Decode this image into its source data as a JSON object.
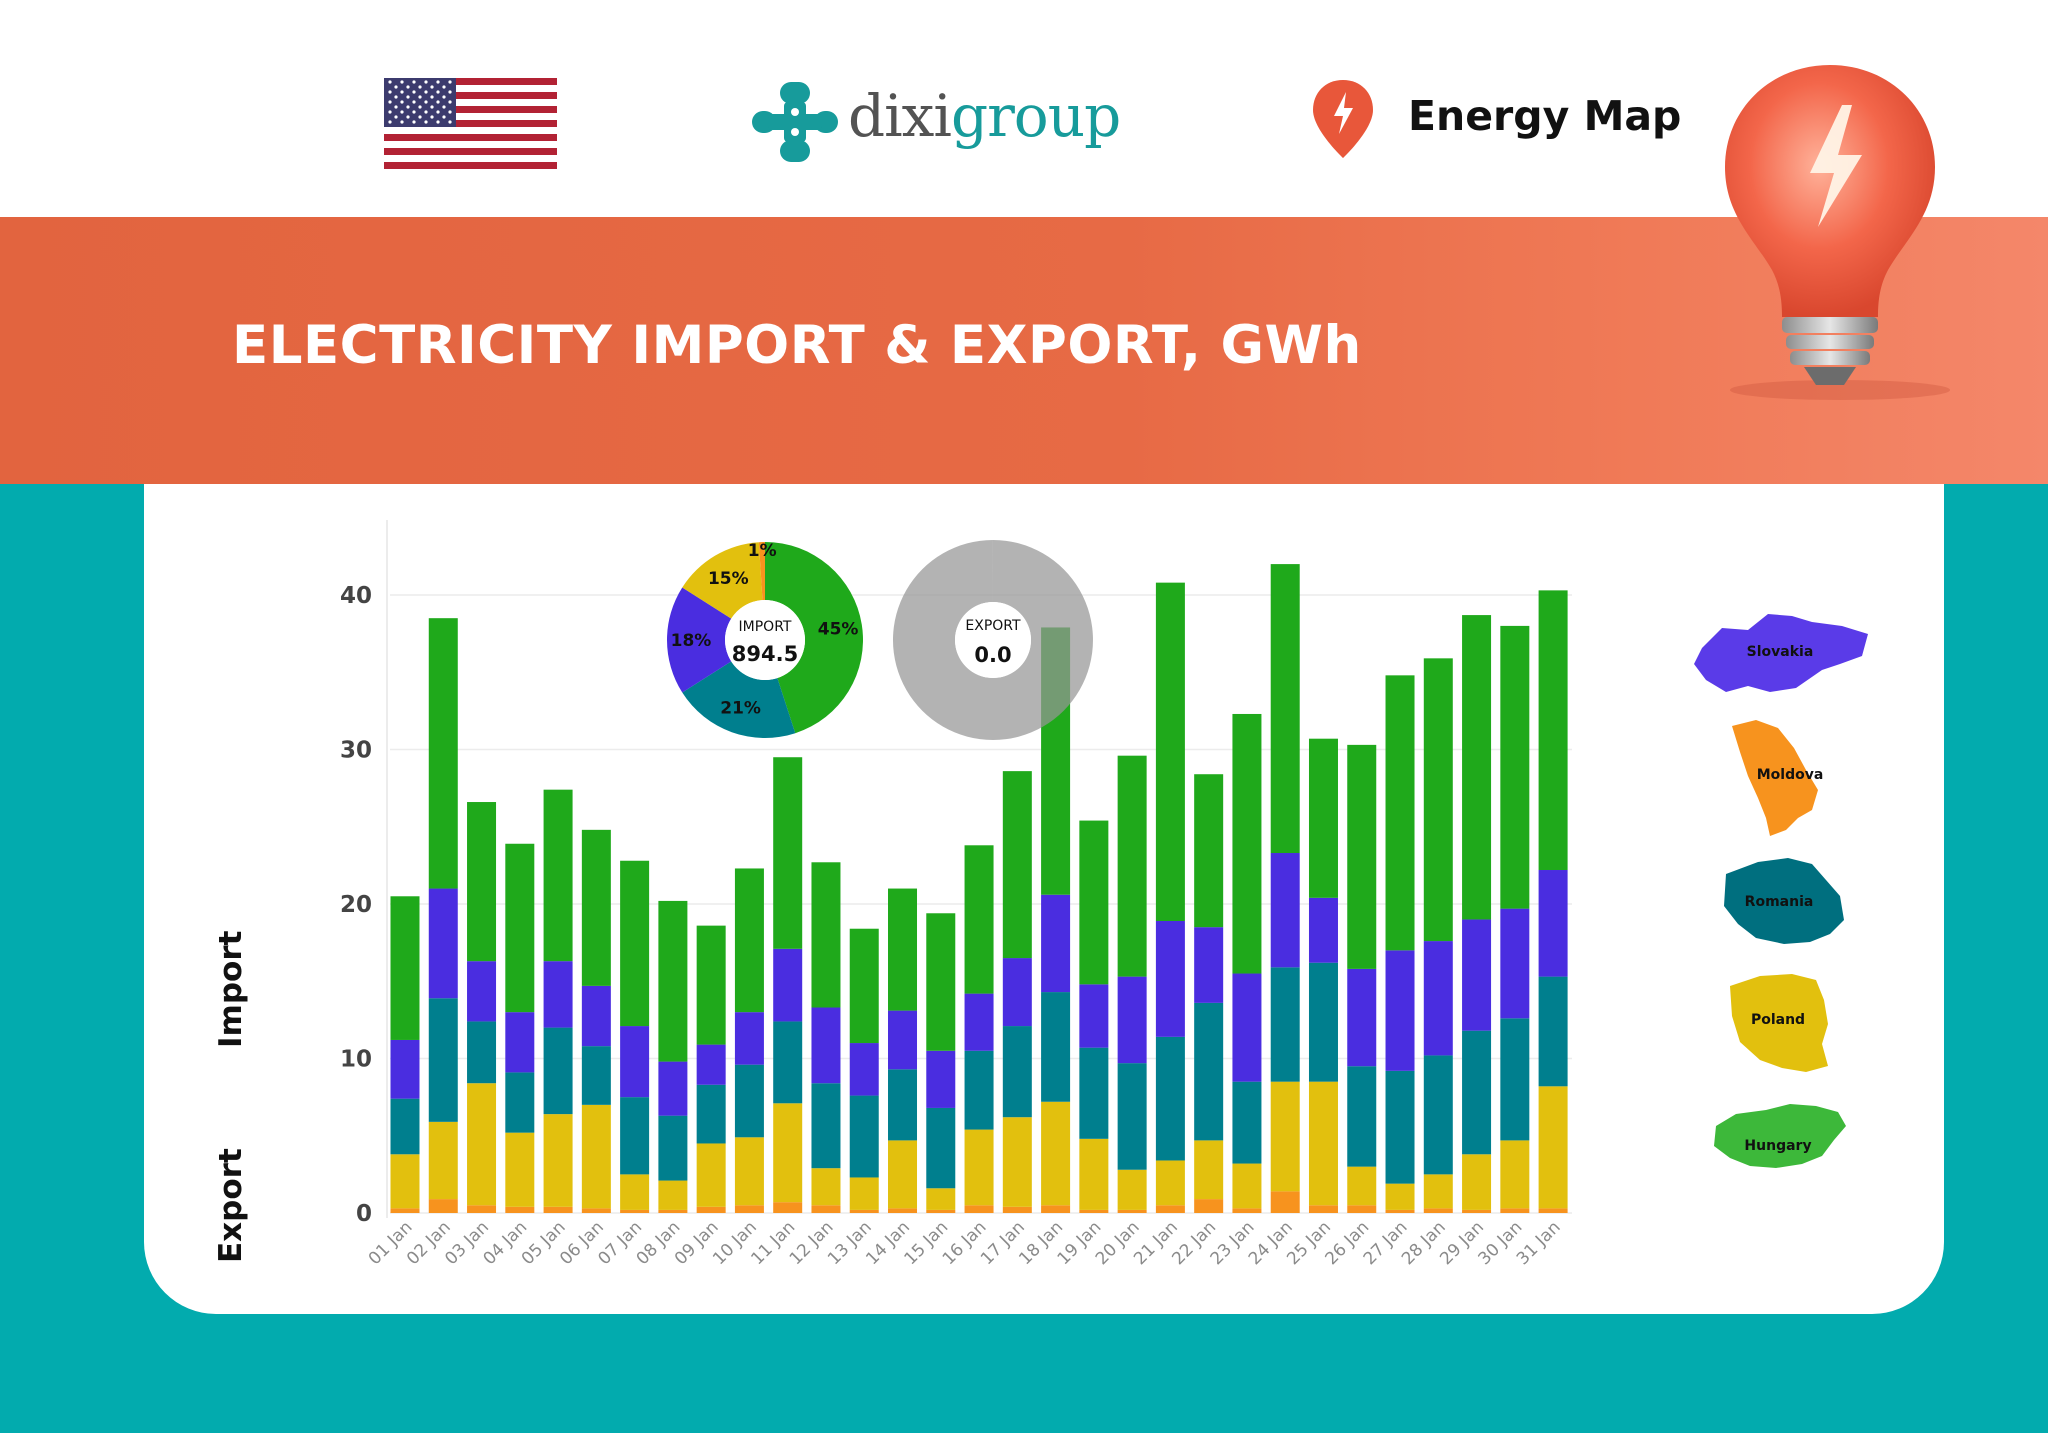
{
  "header": {
    "brand": "dixigroup",
    "brand_part1": "dixi",
    "brand_part2": "group",
    "product": "Energy Map"
  },
  "title": "ELECTRICITY IMPORT & EXPORT, GWh",
  "colors": {
    "Hungary": "#1FA91B",
    "Slovakia": "#4A2DE0",
    "Romania": "#007F8E",
    "Poland": "#E2C00E",
    "Moldova": "#F7931E",
    "background": "#02ABAE",
    "title_band": "#E6673F"
  },
  "icons": [
    "us-flag-icon",
    "dixigroup-logo-icon",
    "map-pin-icon",
    "light-bulb-icon"
  ],
  "chart_data": [
    {
      "type": "bar",
      "stacked": true,
      "categories": [
        "01 Jan",
        "02 Jan",
        "03 Jan",
        "04 Jan",
        "05 Jan",
        "06 Jan",
        "07 Jan",
        "08 Jan",
        "09 Jan",
        "10 Jan",
        "11 Jan",
        "12 Jan",
        "13 Jan",
        "14 Jan",
        "15 Jan",
        "16 Jan",
        "17 Jan",
        "18 Jan",
        "19 Jan",
        "20 Jan",
        "21 Jan",
        "22 Jan",
        "23 Jan",
        "24 Jan",
        "25 Jan",
        "26 Jan",
        "27 Jan",
        "28 Jan",
        "29 Jan",
        "30 Jan",
        "31 Jan"
      ],
      "series": [
        {
          "name": "Moldova",
          "values": [
            0.3,
            0.9,
            0.5,
            0.4,
            0.4,
            0.3,
            0.2,
            0.2,
            0.4,
            0.5,
            0.7,
            0.5,
            0.2,
            0.3,
            0.2,
            0.5,
            0.4,
            0.5,
            0.2,
            0.2,
            0.5,
            0.9,
            0.3,
            1.4,
            0.5,
            0.5,
            0.2,
            0.3,
            0.2,
            0.3,
            0.3
          ]
        },
        {
          "name": "Poland",
          "values": [
            3.5,
            5.0,
            7.9,
            4.8,
            6.0,
            6.7,
            2.3,
            1.9,
            4.1,
            4.4,
            6.4,
            2.4,
            2.1,
            4.4,
            1.4,
            4.9,
            5.8,
            6.7,
            4.6,
            2.6,
            2.9,
            3.8,
            2.9,
            7.1,
            8.0,
            2.5,
            1.7,
            2.2,
            3.6,
            4.4,
            7.9
          ]
        },
        {
          "name": "Romania",
          "values": [
            3.6,
            8.0,
            4.0,
            3.9,
            5.6,
            3.8,
            5.0,
            4.2,
            3.8,
            4.7,
            5.3,
            5.5,
            5.3,
            4.6,
            5.2,
            5.1,
            5.9,
            7.1,
            5.9,
            6.9,
            8.0,
            8.9,
            5.3,
            7.4,
            7.7,
            6.5,
            7.3,
            7.7,
            8.0,
            7.9,
            7.1
          ]
        },
        {
          "name": "Slovakia",
          "values": [
            3.8,
            7.1,
            3.9,
            3.9,
            4.3,
            3.9,
            4.6,
            3.5,
            2.6,
            3.4,
            4.7,
            4.9,
            3.4,
            3.8,
            3.7,
            3.7,
            4.4,
            6.3,
            4.1,
            5.6,
            7.5,
            4.9,
            7.0,
            7.4,
            4.2,
            6.3,
            7.8,
            7.4,
            7.2,
            7.1,
            6.9
          ]
        },
        {
          "name": "Hungary",
          "values": [
            9.3,
            17.5,
            10.3,
            10.9,
            11.1,
            10.1,
            10.7,
            10.4,
            7.7,
            9.3,
            12.4,
            9.4,
            7.4,
            7.9,
            8.9,
            9.6,
            12.1,
            17.3,
            10.6,
            14.3,
            21.9,
            9.9,
            16.8,
            18.7,
            10.3,
            14.5,
            17.8,
            18.3,
            19.7,
            18.3,
            18.1
          ]
        }
      ],
      "ylim": [
        0,
        45
      ],
      "yticks": [
        0,
        10,
        20,
        30,
        40
      ],
      "side_labels": [
        "Import",
        "Export"
      ],
      "grid": true,
      "legend": "right (country maps)",
      "legend_entries": [
        "Slovakia",
        "Moldova",
        "Romania",
        "Poland",
        "Hungary"
      ]
    },
    {
      "type": "pie",
      "center_label": "IMPORT",
      "center_value": "894.5",
      "slices": [
        {
          "name": "Hungary",
          "label": "45%",
          "value": 45
        },
        {
          "name": "Romania",
          "label": "21%",
          "value": 21
        },
        {
          "name": "Slovakia",
          "label": "18%",
          "value": 18
        },
        {
          "name": "Poland",
          "label": "15%",
          "value": 15
        },
        {
          "name": "Moldova",
          "label": "1%",
          "value": 1
        }
      ]
    },
    {
      "type": "pie",
      "center_label": "EXPORT",
      "center_value": "0.0",
      "slices": [
        {
          "name": "Export",
          "value": 0
        }
      ]
    }
  ]
}
